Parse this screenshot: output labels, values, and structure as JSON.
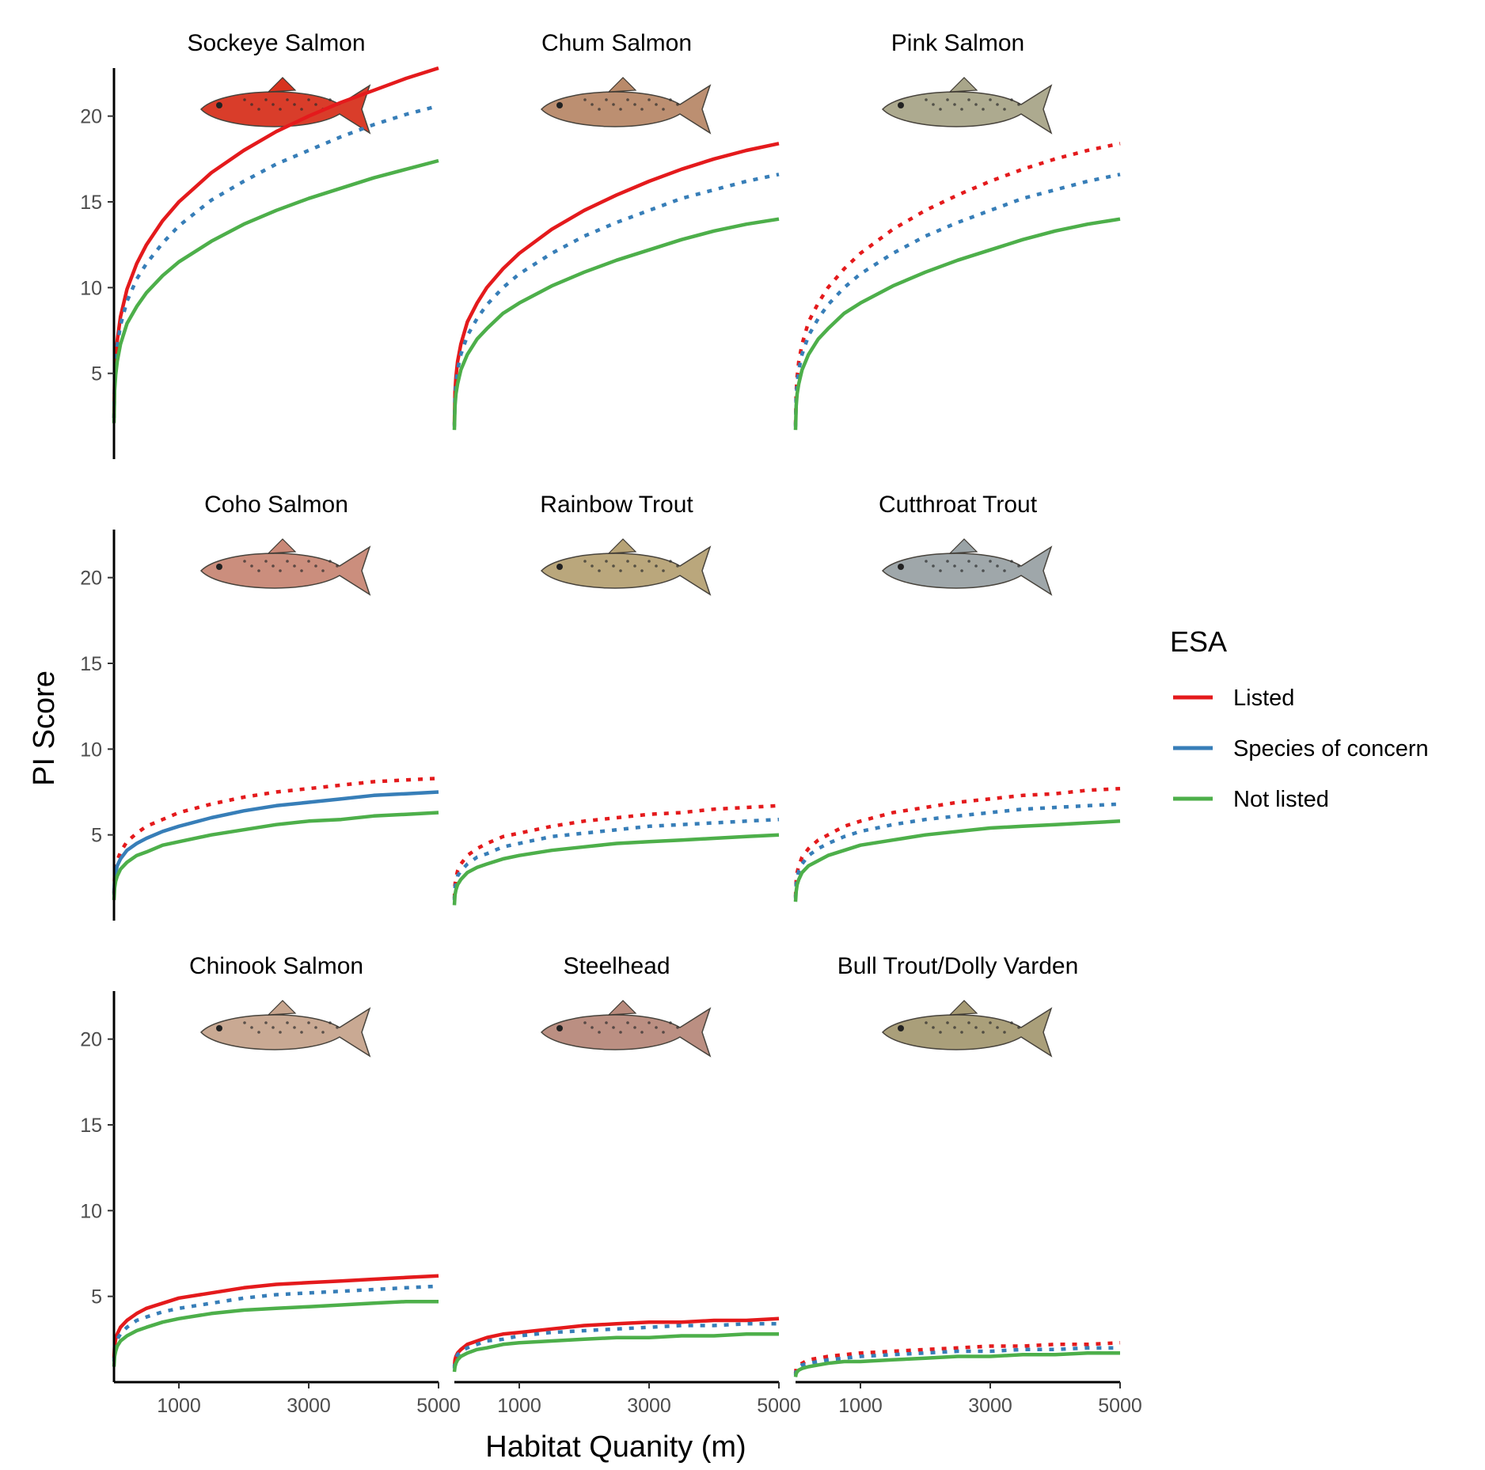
{
  "chart_data": {
    "type": "line",
    "xlabel": "Habitat Quanity (m)",
    "ylabel": "PI Score",
    "xlim": [
      0,
      5000
    ],
    "ylim": [
      0,
      22.8
    ],
    "x_ticks": [
      1000,
      3000,
      5000
    ],
    "y_ticks": [
      5,
      10,
      15,
      20
    ],
    "grid": false,
    "legend": {
      "title": "ESA",
      "position": "right",
      "entries": [
        {
          "key": "listed",
          "label": "Listed",
          "color": "#e41a1c"
        },
        {
          "key": "concern",
          "label": "Species of concern",
          "color": "#377eb8"
        },
        {
          "key": "not",
          "label": "Not listed",
          "color": "#4daf4a"
        }
      ]
    },
    "x": [
      0,
      10,
      25,
      50,
      100,
      200,
      350,
      500,
      750,
      1000,
      1500,
      2000,
      2500,
      3000,
      3500,
      4000,
      4500,
      5000
    ],
    "panels": [
      {
        "title": "Sockeye Salmon",
        "fish_icon": "sockeye-salmon-icon",
        "fish_color": "#d8331f",
        "series": [
          {
            "group": "listed",
            "linestyle": "solid",
            "values": [
              2.4,
              4.7,
              5.8,
              6.9,
              8.3,
              9.9,
              11.4,
              12.5,
              13.9,
              15.0,
              16.7,
              18.0,
              19.1,
              20.0,
              20.8,
              21.5,
              22.2,
              22.8
            ]
          },
          {
            "group": "concern",
            "linestyle": "dotted",
            "values": [
              2.4,
              4.4,
              5.5,
              6.6,
              7.8,
              9.2,
              10.5,
              11.4,
              12.6,
              13.6,
              15.1,
              16.2,
              17.2,
              18.0,
              18.8,
              19.5,
              20.1,
              20.6
            ]
          },
          {
            "group": "not",
            "linestyle": "solid",
            "values": [
              2.1,
              4.0,
              4.9,
              5.7,
              6.7,
              7.9,
              8.9,
              9.7,
              10.7,
              11.5,
              12.7,
              13.7,
              14.5,
              15.2,
              15.8,
              16.4,
              16.9,
              17.4
            ]
          }
        ]
      },
      {
        "title": "Chum Salmon",
        "fish_icon": "chum-salmon-icon",
        "fish_color": "#b98a6a",
        "series": [
          {
            "group": "listed",
            "linestyle": "solid",
            "values": [
              2.0,
              3.9,
              4.8,
              5.7,
              6.7,
              8.0,
              9.1,
              10.0,
              11.1,
              12.0,
              13.4,
              14.5,
              15.4,
              16.2,
              16.9,
              17.5,
              18.0,
              18.4
            ]
          },
          {
            "group": "concern",
            "linestyle": "dotted",
            "values": [
              1.9,
              3.6,
              4.4,
              5.2,
              6.1,
              7.2,
              8.2,
              9.0,
              10.0,
              10.8,
              12.0,
              13.0,
              13.8,
              14.5,
              15.2,
              15.7,
              16.2,
              16.6
            ]
          },
          {
            "group": "not",
            "linestyle": "solid",
            "values": [
              1.7,
              3.1,
              3.8,
              4.4,
              5.2,
              6.1,
              7.0,
              7.6,
              8.5,
              9.1,
              10.1,
              10.9,
              11.6,
              12.2,
              12.8,
              13.3,
              13.7,
              14.0
            ]
          }
        ]
      },
      {
        "title": "Pink Salmon",
        "fish_icon": "pink-salmon-icon",
        "fish_color": "#a9a68a",
        "series": [
          {
            "group": "listed",
            "linestyle": "dotted",
            "values": [
              2.0,
              3.9,
              4.8,
              5.7,
              6.7,
              8.0,
              9.1,
              10.0,
              11.1,
              12.0,
              13.4,
              14.5,
              15.4,
              16.2,
              16.9,
              17.5,
              18.0,
              18.4
            ]
          },
          {
            "group": "concern",
            "linestyle": "dotted",
            "values": [
              1.9,
              3.6,
              4.4,
              5.2,
              6.1,
              7.2,
              8.2,
              9.0,
              10.0,
              10.8,
              12.0,
              13.0,
              13.8,
              14.5,
              15.2,
              15.7,
              16.2,
              16.6
            ]
          },
          {
            "group": "not",
            "linestyle": "solid",
            "values": [
              1.7,
              3.1,
              3.8,
              4.4,
              5.2,
              6.1,
              7.0,
              7.6,
              8.5,
              9.1,
              10.1,
              10.9,
              11.6,
              12.2,
              12.8,
              13.3,
              13.7,
              14.0
            ]
          }
        ]
      },
      {
        "title": "Coho Salmon",
        "fish_icon": "coho-salmon-icon",
        "fish_color": "#c98877",
        "series": [
          {
            "group": "listed",
            "linestyle": "dotted",
            "values": [
              1.6,
              2.6,
              3.1,
              3.5,
              4.0,
              4.6,
              5.1,
              5.5,
              5.9,
              6.3,
              6.8,
              7.2,
              7.5,
              7.7,
              7.9,
              8.1,
              8.2,
              8.3
            ]
          },
          {
            "group": "concern",
            "linestyle": "solid",
            "values": [
              1.5,
              2.4,
              2.8,
              3.2,
              3.6,
              4.1,
              4.5,
              4.8,
              5.2,
              5.5,
              6.0,
              6.4,
              6.7,
              6.9,
              7.1,
              7.3,
              7.4,
              7.5
            ]
          },
          {
            "group": "not",
            "linestyle": "solid",
            "values": [
              1.2,
              1.9,
              2.3,
              2.6,
              3.0,
              3.4,
              3.8,
              4.0,
              4.4,
              4.6,
              5.0,
              5.3,
              5.6,
              5.8,
              5.9,
              6.1,
              6.2,
              6.3
            ]
          }
        ]
      },
      {
        "title": "Rainbow Trout",
        "fish_icon": "rainbow-trout-icon",
        "fish_color": "#b7a376",
        "series": [
          {
            "group": "listed",
            "linestyle": "dotted",
            "values": [
              1.3,
              2.1,
              2.5,
              2.9,
              3.3,
              3.8,
              4.2,
              4.5,
              4.9,
              5.1,
              5.5,
              5.8,
              6.0,
              6.2,
              6.3,
              6.5,
              6.6,
              6.7
            ]
          },
          {
            "group": "concern",
            "linestyle": "dotted",
            "values": [
              1.2,
              1.9,
              2.2,
              2.6,
              2.9,
              3.3,
              3.7,
              3.9,
              4.3,
              4.5,
              4.9,
              5.1,
              5.3,
              5.5,
              5.6,
              5.7,
              5.8,
              5.9
            ]
          },
          {
            "group": "not",
            "linestyle": "solid",
            "values": [
              0.9,
              1.5,
              1.8,
              2.1,
              2.4,
              2.8,
              3.1,
              3.3,
              3.6,
              3.8,
              4.1,
              4.3,
              4.5,
              4.6,
              4.7,
              4.8,
              4.9,
              5.0
            ]
          }
        ]
      },
      {
        "title": "Cutthroat Trout",
        "fish_icon": "cutthroat-trout-icon",
        "fish_color": "#9aa3a6",
        "series": [
          {
            "group": "listed",
            "linestyle": "dotted",
            "values": [
              1.4,
              2.3,
              2.8,
              3.2,
              3.7,
              4.2,
              4.7,
              5.0,
              5.5,
              5.8,
              6.3,
              6.6,
              6.9,
              7.1,
              7.3,
              7.4,
              7.6,
              7.7
            ]
          },
          {
            "group": "concern",
            "linestyle": "dotted",
            "values": [
              1.3,
              2.1,
              2.5,
              2.9,
              3.3,
              3.8,
              4.2,
              4.5,
              4.9,
              5.2,
              5.6,
              5.9,
              6.1,
              6.3,
              6.5,
              6.6,
              6.7,
              6.8
            ]
          },
          {
            "group": "not",
            "linestyle": "solid",
            "values": [
              1.1,
              1.7,
              2.1,
              2.4,
              2.8,
              3.2,
              3.5,
              3.8,
              4.1,
              4.4,
              4.7,
              5.0,
              5.2,
              5.4,
              5.5,
              5.6,
              5.7,
              5.8
            ]
          }
        ]
      },
      {
        "title": "Chinook Salmon",
        "fish_icon": "chinook-salmon-icon",
        "fish_color": "#c7a58e",
        "series": [
          {
            "group": "listed",
            "linestyle": "solid",
            "values": [
              1.4,
              2.1,
              2.5,
              2.8,
              3.2,
              3.6,
              4.0,
              4.3,
              4.6,
              4.9,
              5.2,
              5.5,
              5.7,
              5.8,
              5.9,
              6.0,
              6.1,
              6.2
            ]
          },
          {
            "group": "concern",
            "linestyle": "dotted",
            "values": [
              1.2,
              1.9,
              2.2,
              2.5,
              2.8,
              3.2,
              3.6,
              3.8,
              4.1,
              4.3,
              4.6,
              4.9,
              5.1,
              5.2,
              5.3,
              5.4,
              5.5,
              5.6
            ]
          },
          {
            "group": "not",
            "linestyle": "solid",
            "values": [
              0.9,
              1.5,
              1.8,
              2.1,
              2.4,
              2.7,
              3.0,
              3.2,
              3.5,
              3.7,
              4.0,
              4.2,
              4.3,
              4.4,
              4.5,
              4.6,
              4.7,
              4.7
            ]
          }
        ]
      },
      {
        "title": "Steelhead",
        "fish_icon": "steelhead-icon",
        "fish_color": "#b88a7c",
        "series": [
          {
            "group": "listed",
            "linestyle": "solid",
            "values": [
              0.9,
              1.3,
              1.5,
              1.7,
              1.9,
              2.2,
              2.4,
              2.6,
              2.8,
              2.9,
              3.1,
              3.3,
              3.4,
              3.5,
              3.5,
              3.6,
              3.6,
              3.7
            ]
          },
          {
            "group": "concern",
            "linestyle": "dotted",
            "values": [
              0.8,
              1.2,
              1.4,
              1.6,
              1.8,
              2.0,
              2.2,
              2.4,
              2.5,
              2.7,
              2.9,
              3.0,
              3.1,
              3.2,
              3.3,
              3.3,
              3.4,
              3.4
            ]
          },
          {
            "group": "not",
            "linestyle": "solid",
            "values": [
              0.6,
              0.9,
              1.1,
              1.3,
              1.5,
              1.7,
              1.9,
              2.0,
              2.2,
              2.3,
              2.4,
              2.5,
              2.6,
              2.6,
              2.7,
              2.7,
              2.8,
              2.8
            ]
          }
        ]
      },
      {
        "title": "Bull Trout/Dolly Varden",
        "fish_icon": "bull-trout-icon",
        "fish_color": "#a69a73",
        "series": [
          {
            "group": "listed",
            "linestyle": "dotted",
            "values": [
              0.5,
              0.8,
              0.9,
              1.0,
              1.1,
              1.3,
              1.4,
              1.5,
              1.6,
              1.7,
              1.8,
              1.9,
              2.0,
              2.1,
              2.1,
              2.2,
              2.2,
              2.3
            ]
          },
          {
            "group": "concern",
            "linestyle": "dotted",
            "values": [
              0.4,
              0.7,
              0.8,
              0.9,
              1.0,
              1.1,
              1.2,
              1.3,
              1.4,
              1.5,
              1.6,
              1.7,
              1.8,
              1.8,
              1.9,
              1.9,
              2.0,
              2.0
            ]
          },
          {
            "group": "not",
            "linestyle": "solid",
            "values": [
              0.3,
              0.5,
              0.6,
              0.7,
              0.8,
              0.9,
              1.0,
              1.1,
              1.2,
              1.2,
              1.3,
              1.4,
              1.5,
              1.5,
              1.6,
              1.6,
              1.7,
              1.7
            ]
          }
        ]
      }
    ]
  }
}
